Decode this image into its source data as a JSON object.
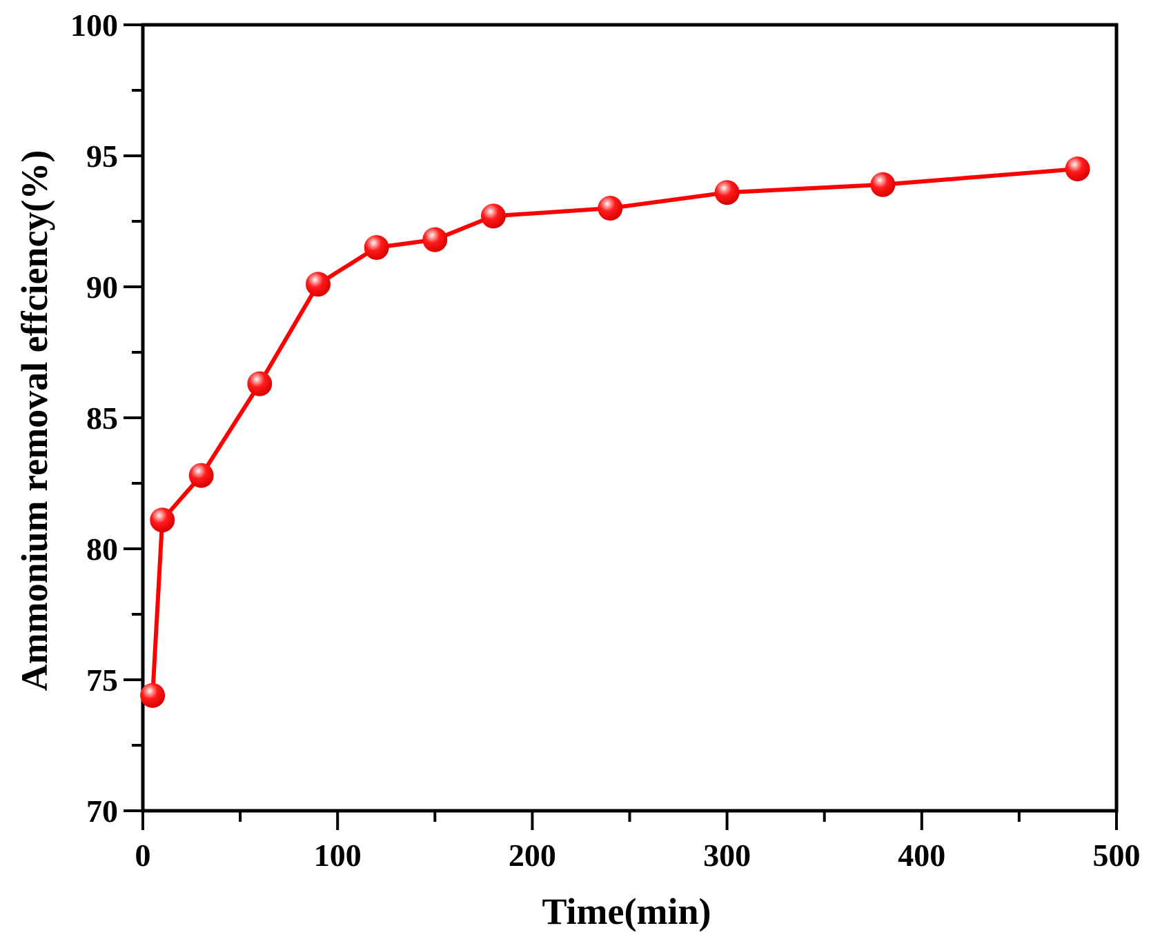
{
  "chart_data": {
    "type": "line",
    "title": "",
    "xlabel": "Time(min)",
    "ylabel": "Ammonium removal effciency(%)",
    "xlim": [
      0,
      500
    ],
    "ylim": [
      70,
      100
    ],
    "x_ticks": [
      "0",
      "100",
      "200",
      "300",
      "400",
      "500"
    ],
    "y_ticks": [
      "70",
      "75",
      "80",
      "85",
      "90",
      "95",
      "100"
    ],
    "series": [
      {
        "x": [
          5,
          10,
          30,
          60,
          90,
          120,
          150,
          180,
          240,
          300,
          380,
          480
        ],
        "y": [
          74.4,
          81.1,
          82.8,
          86.3,
          90.1,
          91.5,
          91.8,
          92.7,
          93.0,
          93.6,
          93.9,
          94.5
        ],
        "color": "#ff0000",
        "marker": "circle"
      }
    ],
    "grid": false,
    "legend": "none"
  }
}
